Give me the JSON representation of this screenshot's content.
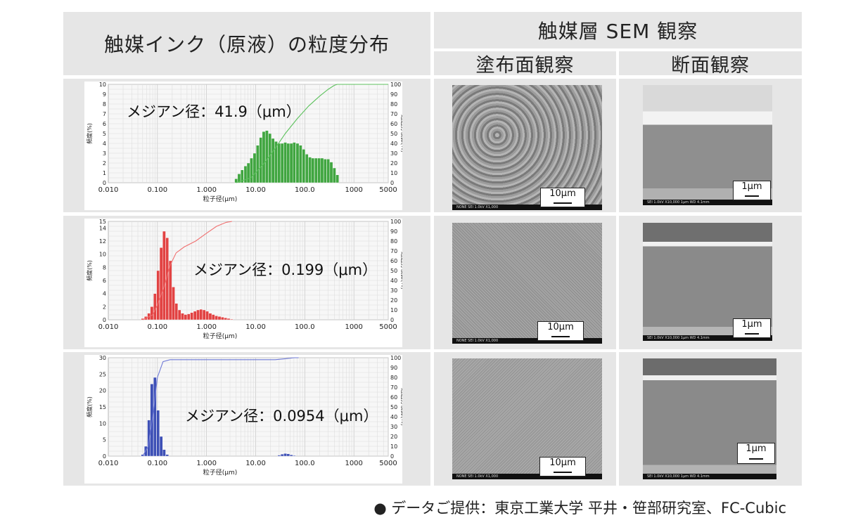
{
  "header": {
    "left_title": "触媒インク（原液）の粒度分布",
    "right_title": "触媒層 SEM 観察",
    "col_surface": "塗布面観察",
    "col_section": "断面観察"
  },
  "rows": [
    {
      "median_text": "メジアン径：41.9（μm）",
      "surface_scale": "10μm",
      "section_scale": "1μm"
    },
    {
      "median_text": "メジアン径：0.199（μm）",
      "surface_scale": "10μm",
      "section_scale": "1μm"
    },
    {
      "median_text": "メジアン径：0.0954（μm）",
      "surface_scale": "10μm",
      "section_scale": "1μm"
    }
  ],
  "sem_labels": {
    "surface": "NONE        SEI    1.0kV    X1,000",
    "section": "SEI    1.0kV    X10,000    1μm    WD 4.1mm"
  },
  "footer": "● データご提供：東京工業大学  平井・笹部研究室、FC-Cubic",
  "chart_data": [
    {
      "type": "bar",
      "xlabel": "粒子径(μm)",
      "ylabel": "頻度(%)",
      "y2label": "通過分積算(%)",
      "xscale": "log",
      "xlim": [
        0.01,
        5000
      ],
      "xticks": [
        "0.010",
        "0.100",
        "1.000",
        "10.00",
        "100.0",
        "1000",
        "5000"
      ],
      "ylim": [
        0,
        10
      ],
      "yticks": [
        "0",
        "1",
        "2",
        "3",
        "4",
        "5",
        "6",
        "7",
        "8",
        "9",
        "10"
      ],
      "y2lim": [
        0,
        100
      ],
      "y2ticks": [
        "0",
        "10",
        "20",
        "30",
        "40",
        "50",
        "60",
        "70",
        "80",
        "90",
        "100"
      ],
      "color": "#2e9e2e",
      "line_color": "#5cc15c",
      "bars": {
        "x": [
          4,
          4.6,
          5.3,
          6.2,
          7.1,
          8.2,
          9.5,
          11,
          12.7,
          14.6,
          16.9,
          19.5,
          22.5,
          26,
          30,
          34.6,
          40,
          46,
          53,
          61,
          71,
          82,
          95,
          110,
          127,
          146,
          169,
          195,
          225,
          260,
          300,
          346,
          400,
          460
        ],
        "values": [
          0.4,
          0.9,
          1.3,
          1.7,
          2.0,
          2.5,
          3.0,
          3.8,
          4.6,
          5.2,
          5.3,
          5.0,
          4.5,
          4.2,
          4.0,
          4.0,
          4.1,
          4.0,
          4.0,
          4.1,
          4.0,
          3.8,
          3.4,
          2.9,
          2.6,
          2.5,
          2.5,
          2.5,
          2.5,
          2.4,
          2.4,
          2.1,
          1.5,
          0.8
        ]
      },
      "cumulative": {
        "x": [
          4,
          8,
          15,
          25,
          40,
          70,
          120,
          200,
          300,
          400,
          460,
          5000
        ],
        "values": [
          0,
          5,
          20,
          35,
          50,
          65,
          78,
          88,
          95,
          99,
          100,
          100
        ]
      }
    },
    {
      "type": "bar",
      "xlabel": "粒子径(μm)",
      "ylabel": "頻度(%)",
      "y2label": "通過分積算(%)",
      "xscale": "log",
      "xlim": [
        0.01,
        5000
      ],
      "xticks": [
        "0.010",
        "0.100",
        "1.000",
        "10.00",
        "100.0",
        "1000",
        "5000"
      ],
      "ylim": [
        0,
        15
      ],
      "yticks": [
        "0",
        "2",
        "4",
        "6",
        "8",
        "10",
        "12",
        "14"
      ],
      "ytick_max": "15",
      "y2lim": [
        0,
        100
      ],
      "y2ticks": [
        "0",
        "10",
        "20",
        "30",
        "40",
        "50",
        "60",
        "70",
        "80",
        "90",
        "100"
      ],
      "color": "#e03030",
      "line_color": "#f07070",
      "bars": {
        "x": [
          0.05,
          0.058,
          0.067,
          0.077,
          0.089,
          0.103,
          0.119,
          0.137,
          0.158,
          0.183,
          0.211,
          0.243,
          0.281,
          0.324,
          0.374,
          0.432,
          0.5,
          0.58,
          0.67,
          0.77,
          0.89,
          1.03,
          1.19,
          1.37,
          1.58,
          1.83,
          2.11,
          2.43,
          2.81,
          3.24
        ],
        "values": [
          0.2,
          0.5,
          1.0,
          2.0,
          4.0,
          7.5,
          11.0,
          13.5,
          12.5,
          9.0,
          5.0,
          2.5,
          1.5,
          1.0,
          0.8,
          0.9,
          1.1,
          1.3,
          1.5,
          1.6,
          1.5,
          1.3,
          1.0,
          0.8,
          0.6,
          0.5,
          0.4,
          0.3,
          0.2,
          0.1
        ]
      },
      "cumulative": {
        "x": [
          0.05,
          0.08,
          0.1,
          0.14,
          0.18,
          0.24,
          0.35,
          0.6,
          1.0,
          1.6,
          2.5,
          3.3
        ],
        "values": [
          0,
          5,
          15,
          35,
          55,
          68,
          74,
          80,
          88,
          95,
          99,
          100
        ]
      }
    },
    {
      "type": "bar",
      "xlabel": "粒子径(μm)",
      "ylabel": "頻度(%)",
      "y2label": "通過分積算(%)",
      "xscale": "log",
      "xlim": [
        0.01,
        5000
      ],
      "xticks": [
        "0.010",
        "0.100",
        "1.000",
        "10.00",
        "100.0",
        "1000",
        "5000"
      ],
      "ylim": [
        0,
        30
      ],
      "yticks": [
        "0",
        "5",
        "10",
        "15",
        "20",
        "25",
        "30"
      ],
      "y2lim": [
        0,
        100
      ],
      "y2ticks": [
        "0",
        "10",
        "20",
        "30",
        "40",
        "50",
        "60",
        "70",
        "80",
        "90",
        "100"
      ],
      "color": "#2a3fb0",
      "line_color": "#6f7ad6",
      "bars": {
        "x": [
          0.05,
          0.058,
          0.067,
          0.077,
          0.089,
          0.103,
          0.119,
          0.137,
          0.158,
          30,
          34.6,
          40,
          46,
          53,
          61
        ],
        "values": [
          0.5,
          3.0,
          11.0,
          22.0,
          24.0,
          14.0,
          6.0,
          2.0,
          0.5,
          0.3,
          0.6,
          0.8,
          0.7,
          0.4,
          0.2
        ]
      },
      "cumulative": {
        "x": [
          0.05,
          0.065,
          0.08,
          0.1,
          0.13,
          0.18,
          25,
          40,
          60,
          75
        ],
        "values": [
          0,
          10,
          40,
          80,
          96,
          98,
          98,
          99,
          100,
          100
        ]
      }
    }
  ]
}
